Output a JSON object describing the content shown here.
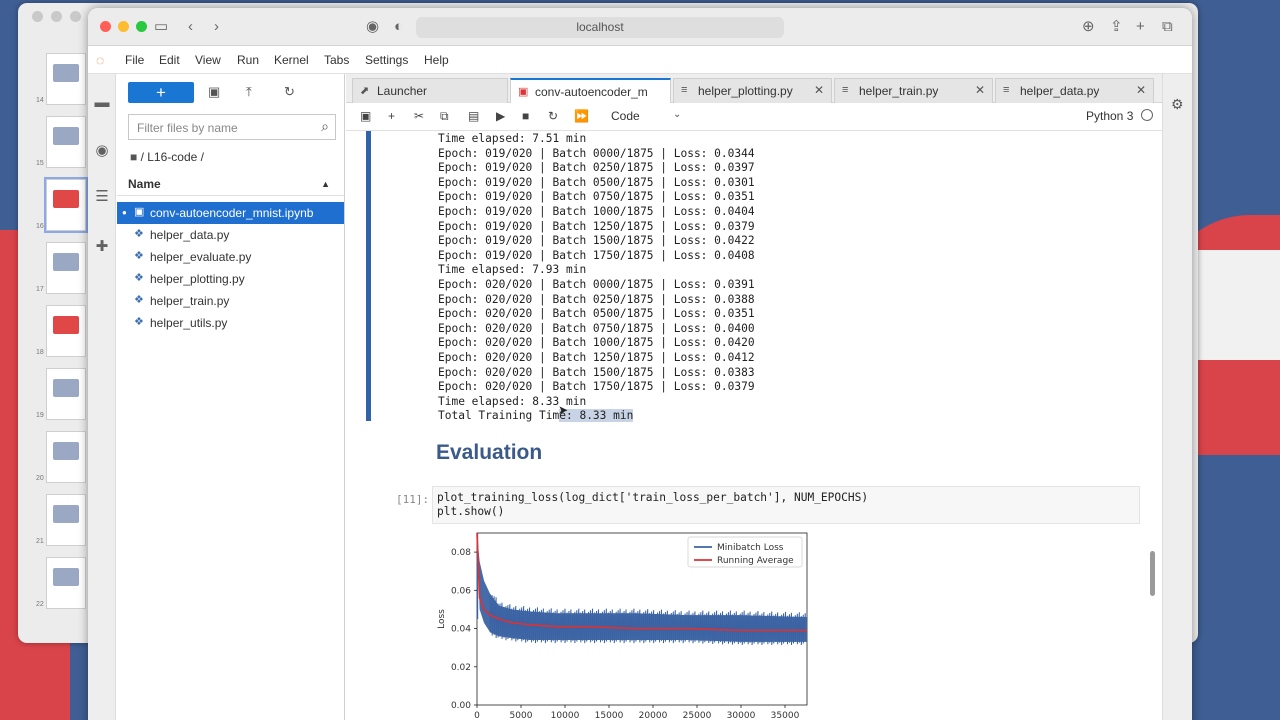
{
  "browser": {
    "url": "localhost"
  },
  "menu": [
    "File",
    "Edit",
    "View",
    "Run",
    "Kernel",
    "Tabs",
    "Settings",
    "Help"
  ],
  "slides": {
    "numbers": [
      "14",
      "15",
      "16",
      "17",
      "18",
      "19",
      "20",
      "21",
      "22"
    ]
  },
  "filebrowser": {
    "new_label": "+",
    "filter_placeholder": "Filter files by name",
    "breadcrumb": "/ L16-code /",
    "column_name": "Name",
    "files": [
      {
        "name": "conv-autoencoder_mnist.ipynb",
        "icon": "notebook-icon"
      },
      {
        "name": "helper_data.py",
        "icon": "python-icon"
      },
      {
        "name": "helper_evaluate.py",
        "icon": "python-icon"
      },
      {
        "name": "helper_plotting.py",
        "icon": "python-icon"
      },
      {
        "name": "helper_train.py",
        "icon": "python-icon"
      },
      {
        "name": "helper_utils.py",
        "icon": "python-icon"
      }
    ]
  },
  "tabs": [
    {
      "label": "Launcher",
      "icon": "launcher-icon"
    },
    {
      "label": "conv-autoencoder_m",
      "icon": "notebook-icon"
    },
    {
      "label": "helper_plotting.py",
      "icon": "python-icon"
    },
    {
      "label": "helper_train.py",
      "icon": "python-icon"
    },
    {
      "label": "helper_data.py",
      "icon": "python-icon"
    }
  ],
  "toolbar": {
    "cell_type": "Code",
    "kernel": "Python 3"
  },
  "output": {
    "lines": [
      "Time elapsed: 7.51 min",
      "Epoch: 019/020 | Batch 0000/1875 | Loss: 0.0344",
      "Epoch: 019/020 | Batch 0250/1875 | Loss: 0.0397",
      "Epoch: 019/020 | Batch 0500/1875 | Loss: 0.0301",
      "Epoch: 019/020 | Batch 0750/1875 | Loss: 0.0351",
      "Epoch: 019/020 | Batch 1000/1875 | Loss: 0.0404",
      "Epoch: 019/020 | Batch 1250/1875 | Loss: 0.0379",
      "Epoch: 019/020 | Batch 1500/1875 | Loss: 0.0422",
      "Epoch: 019/020 | Batch 1750/1875 | Loss: 0.0408",
      "Time elapsed: 7.93 min",
      "Epoch: 020/020 | Batch 0000/1875 | Loss: 0.0391",
      "Epoch: 020/020 | Batch 0250/1875 | Loss: 0.0388",
      "Epoch: 020/020 | Batch 0500/1875 | Loss: 0.0351",
      "Epoch: 020/020 | Batch 0750/1875 | Loss: 0.0400",
      "Epoch: 020/020 | Batch 1000/1875 | Loss: 0.0420",
      "Epoch: 020/020 | Batch 1250/1875 | Loss: 0.0412",
      "Epoch: 020/020 | Batch 1500/1875 | Loss: 0.0383",
      "Epoch: 020/020 | Batch 1750/1875 | Loss: 0.0379",
      "Time elapsed: 8.33 min"
    ],
    "last_prefix": "Total Training Tim",
    "last_highlight": "e: 8.33 min"
  },
  "heading": "Evaluation",
  "code_cell": {
    "prompt": "[11]:",
    "lines": [
      "plot_training_loss(log_dict['train_loss_per_batch'], NUM_EPOCHS)",
      "plt.show()"
    ]
  },
  "chart_data": {
    "type": "line",
    "ylabel": "Loss",
    "xlabel": "",
    "xlim": [
      0,
      37500
    ],
    "ylim": [
      0,
      0.09
    ],
    "x_ticks": [
      0,
      5000,
      10000,
      15000,
      20000,
      25000,
      30000,
      35000
    ],
    "y_ticks": [
      0.0,
      0.02,
      0.04,
      0.06,
      0.08
    ],
    "y_tick_labels": [
      "0.00",
      "0.02",
      "0.04",
      "0.06",
      "0.08"
    ],
    "legend": "top-right",
    "series": [
      {
        "name": "Minibatch Loss",
        "color": "#3b63a3",
        "x": [
          0,
          300,
          800,
          1500,
          2500,
          4000,
          6000,
          9000,
          13000,
          18000,
          24000,
          30000,
          37500
        ],
        "y_low": [
          0.09,
          0.05,
          0.043,
          0.038,
          0.036,
          0.035,
          0.034,
          0.034,
          0.034,
          0.034,
          0.034,
          0.033,
          0.033
        ],
        "y_high": [
          0.09,
          0.075,
          0.065,
          0.058,
          0.052,
          0.05,
          0.049,
          0.048,
          0.048,
          0.048,
          0.047,
          0.047,
          0.046
        ]
      },
      {
        "name": "Running Average",
        "color": "#e03030",
        "x": [
          0,
          300,
          800,
          1500,
          2500,
          4000,
          6000,
          9000,
          13000,
          18000,
          24000,
          30000,
          37500
        ],
        "y": [
          0.09,
          0.056,
          0.05,
          0.047,
          0.045,
          0.043,
          0.042,
          0.041,
          0.041,
          0.04,
          0.04,
          0.039,
          0.039
        ]
      }
    ]
  },
  "colors": {
    "accent": "#1976d2",
    "cell_bar": "#3163a8",
    "heading": "#3a5a8a"
  }
}
